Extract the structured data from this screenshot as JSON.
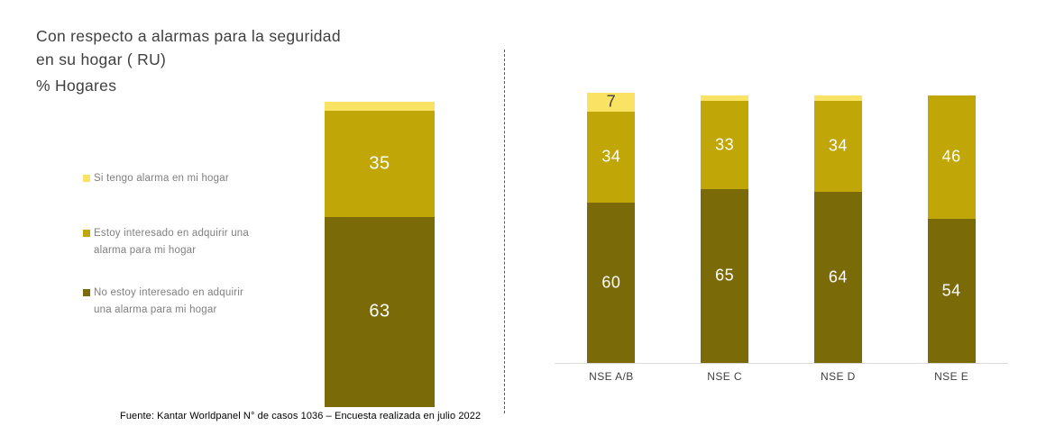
{
  "title": "Con respecto a alarmas para la seguridad\nen su hogar ( RU)",
  "subtitle": "% Hogares",
  "footer": "Fuente: Kantar Worldpanel N° de casos 1036 – Encuesta realizada en julio 2022",
  "colors": {
    "si_tengo": "#FAE264",
    "interesado": "#C1A608",
    "no_interesado": "#7B6A08",
    "axis_line": "#D9D9D9",
    "dark_label": "#404040",
    "white_label": "#FFFFFF"
  },
  "legend": {
    "items": [
      {
        "label": "Si tengo alarma en mi hogar",
        "color": "#FAE264"
      },
      {
        "label": "Estoy interesado en adquirir una\nalarma para mi hogar",
        "color": "#C1A608"
      },
      {
        "label": "No estoy interesado en adquirir\nuna alarma para mi hogar",
        "color": "#7B6A08"
      }
    ]
  },
  "chart_data": [
    {
      "type": "bar",
      "stacked": true,
      "title": "% Hogares",
      "categories": [
        ""
      ],
      "series": [
        {
          "name": "Si tengo alarma en mi hogar",
          "color": "#FAE264",
          "label_color": "#404040",
          "values": [
            3
          ]
        },
        {
          "name": "Estoy interesado en adquirir una alarma para mi hogar",
          "color": "#C1A608",
          "label_color": "#FFFFFF",
          "values": [
            35
          ]
        },
        {
          "name": "No estoy interesado en adquirir una alarma para mi hogar",
          "color": "#7B6A08",
          "label_color": "#FFFFFF",
          "values": [
            63
          ]
        }
      ],
      "ylim": [
        0,
        101
      ],
      "grid": false,
      "legend_position": "left",
      "data_labels": true
    },
    {
      "type": "bar",
      "stacked": true,
      "categories": [
        "NSE A/B",
        "NSE C",
        "NSE D",
        "NSE E"
      ],
      "series": [
        {
          "name": "Si tengo alarma en mi hogar",
          "color": "#FAE264",
          "label_color": "#404040",
          "values": [
            7,
            2,
            2,
            0
          ]
        },
        {
          "name": "Estoy interesado en adquirir una alarma para mi hogar",
          "color": "#C1A608",
          "label_color": "#FFFFFF",
          "values": [
            34,
            33,
            34,
            46
          ]
        },
        {
          "name": "No estoy interesado en adquirir una alarma para mi hogar",
          "color": "#7B6A08",
          "label_color": "#FFFFFF",
          "values": [
            60,
            65,
            64,
            54
          ]
        }
      ],
      "ylim": [
        0,
        101
      ],
      "grid": false,
      "data_labels": true
    }
  ]
}
